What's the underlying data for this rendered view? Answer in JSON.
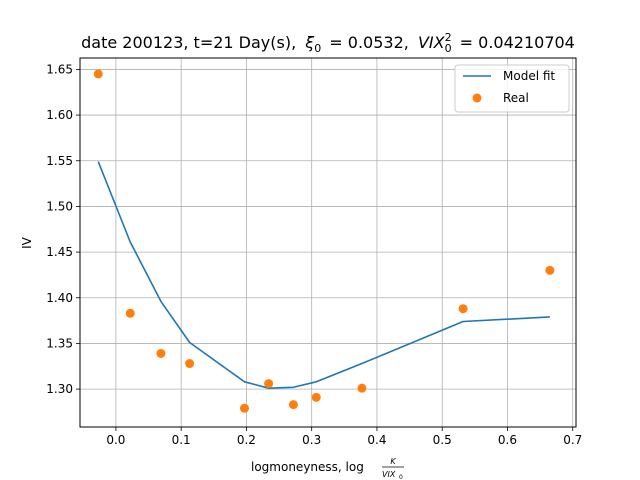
{
  "chart_data": {
    "type": "line",
    "title_prefix": "date 200123, t=21 Day(s),",
    "title_xi_symbol": "ξ",
    "title_xi_sub": "0",
    "title_xi_value": "= 0.0532,",
    "title_vix_symbol": "VIX",
    "title_vix_sup": "2",
    "title_vix_sub": "0",
    "title_vix_value": "= 0.04210704",
    "xlabel_text": "logmoneyness, log",
    "xlabel_frac_num": "K",
    "xlabel_frac_den": "VIX",
    "xlabel_frac_den_sub": "0",
    "ylabel": "IV",
    "xlim": [
      -0.055,
      0.705
    ],
    "ylim": [
      1.2585,
      1.6625
    ],
    "xticks": [
      0.0,
      0.1,
      0.2,
      0.3,
      0.4,
      0.5,
      0.6,
      0.7
    ],
    "xtick_labels": [
      "0.0",
      "0.1",
      "0.2",
      "0.3",
      "0.4",
      "0.5",
      "0.6",
      "0.7"
    ],
    "yticks": [
      1.3,
      1.35,
      1.4,
      1.45,
      1.5,
      1.55,
      1.6,
      1.65
    ],
    "ytick_labels": [
      "1.30",
      "1.35",
      "1.40",
      "1.45",
      "1.50",
      "1.55",
      "1.60",
      "1.65"
    ],
    "grid": true,
    "legend_position": "top-right",
    "series": [
      {
        "name": "Model fit",
        "kind": "line",
        "color": "#1f77b4",
        "x": [
          -0.027,
          0.022,
          0.069,
          0.113,
          0.197,
          0.234,
          0.272,
          0.307,
          0.377,
          0.532,
          0.665
        ],
        "y": [
          1.549,
          1.461,
          1.396,
          1.351,
          1.308,
          1.301,
          1.302,
          1.308,
          1.328,
          1.374,
          1.379
        ]
      },
      {
        "name": "Real",
        "kind": "scatter",
        "color": "#ff7f0e",
        "x": [
          -0.027,
          0.022,
          0.069,
          0.113,
          0.197,
          0.234,
          0.272,
          0.307,
          0.377,
          0.532,
          0.665
        ],
        "y": [
          1.645,
          1.383,
          1.339,
          1.328,
          1.279,
          1.306,
          1.283,
          1.291,
          1.301,
          1.388,
          1.43
        ]
      }
    ]
  }
}
